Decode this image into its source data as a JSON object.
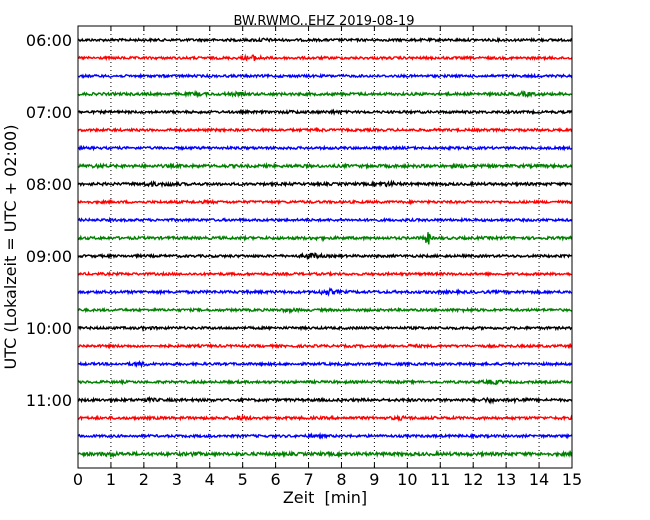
{
  "chart_data": {
    "type": "line",
    "title": "BW.RWMO..EHZ 2019-08-19",
    "xlabel": "Zeit  [min]",
    "ylabel": "UTC (Lokalzeit = UTC + 02:00)",
    "xlim": [
      0,
      15
    ],
    "x_ticks": [
      "0",
      "1",
      "2",
      "3",
      "4",
      "5",
      "6",
      "7",
      "8",
      "9",
      "10",
      "11",
      "12",
      "13",
      "14",
      "15"
    ],
    "y_ticks": [
      {
        "label": "06:00",
        "trace": 0
      },
      {
        "label": "07:00",
        "trace": 4
      },
      {
        "label": "08:00",
        "trace": 8
      },
      {
        "label": "09:00",
        "trace": 12
      },
      {
        "label": "10:00",
        "trace": 16
      },
      {
        "label": "11:00",
        "trace": 20
      }
    ],
    "grid": "vertical-dotted",
    "trace_interval_min": 15,
    "trace_colors": [
      "#000000",
      "#ff0000",
      "#0000ff",
      "#008000"
    ],
    "traces": [
      {
        "start": "06:00",
        "color": "#000000",
        "noise": 1.0,
        "events": [
          {
            "t": 5.6,
            "amp": 1.5
          }
        ]
      },
      {
        "start": "06:15",
        "color": "#ff0000",
        "noise": 1.0,
        "events": [
          {
            "t": 5.3,
            "amp": 2.2
          }
        ]
      },
      {
        "start": "06:30",
        "color": "#0000ff",
        "noise": 1.0,
        "events": []
      },
      {
        "start": "06:45",
        "color": "#008000",
        "noise": 1.1,
        "events": [
          {
            "t": 3.6,
            "amp": 1.4
          },
          {
            "t": 4.8,
            "amp": 1.4
          },
          {
            "t": 13.6,
            "amp": 1.8
          }
        ]
      },
      {
        "start": "07:00",
        "color": "#000000",
        "noise": 1.0,
        "events": [
          {
            "t": 6.5,
            "amp": 1.3
          },
          {
            "t": 7.8,
            "amp": 1.4
          }
        ]
      },
      {
        "start": "07:15",
        "color": "#ff0000",
        "noise": 1.0,
        "events": [
          {
            "t": 7.3,
            "amp": 1.3
          }
        ]
      },
      {
        "start": "07:30",
        "color": "#0000ff",
        "noise": 1.0,
        "events": []
      },
      {
        "start": "07:45",
        "color": "#008000",
        "noise": 1.2,
        "events": [
          {
            "t": 0.6,
            "amp": 1.3
          },
          {
            "t": 11.8,
            "amp": 1.3
          }
        ]
      },
      {
        "start": "08:00",
        "color": "#000000",
        "noise": 1.1,
        "events": [
          {
            "t": 2.2,
            "amp": 1.6
          },
          {
            "t": 2.8,
            "amp": 1.6
          },
          {
            "t": 9.4,
            "amp": 1.8
          }
        ]
      },
      {
        "start": "08:15",
        "color": "#ff0000",
        "noise": 1.0,
        "events": [
          {
            "t": 3.9,
            "amp": 1.2
          }
        ]
      },
      {
        "start": "08:30",
        "color": "#0000ff",
        "noise": 1.0,
        "events": []
      },
      {
        "start": "08:45",
        "color": "#008000",
        "noise": 1.1,
        "events": [
          {
            "t": 10.6,
            "amp": 8.5
          },
          {
            "t": 7.2,
            "amp": 1.3
          }
        ]
      },
      {
        "start": "09:00",
        "color": "#000000",
        "noise": 1.0,
        "events": [
          {
            "t": 7.1,
            "amp": 2.2
          }
        ]
      },
      {
        "start": "09:15",
        "color": "#ff0000",
        "noise": 1.0,
        "events": []
      },
      {
        "start": "09:30",
        "color": "#0000ff",
        "noise": 1.1,
        "events": [
          {
            "t": 7.6,
            "amp": 2.2
          }
        ]
      },
      {
        "start": "09:45",
        "color": "#008000",
        "noise": 1.0,
        "events": [
          {
            "t": 6.4,
            "amp": 1.5
          },
          {
            "t": 11.8,
            "amp": 1.3
          }
        ]
      },
      {
        "start": "10:00",
        "color": "#000000",
        "noise": 1.0,
        "events": [
          {
            "t": 2.1,
            "amp": 1.3
          }
        ]
      },
      {
        "start": "10:15",
        "color": "#ff0000",
        "noise": 1.0,
        "events": [
          {
            "t": 10.2,
            "amp": 1.3
          }
        ]
      },
      {
        "start": "10:30",
        "color": "#0000ff",
        "noise": 1.0,
        "events": [
          {
            "t": 1.9,
            "amp": 1.6
          }
        ]
      },
      {
        "start": "10:45",
        "color": "#008000",
        "noise": 1.0,
        "events": [
          {
            "t": 12.6,
            "amp": 1.8
          }
        ]
      },
      {
        "start": "11:00",
        "color": "#000000",
        "noise": 1.1,
        "events": [
          {
            "t": 12.5,
            "amp": 1.7
          },
          {
            "t": 13.4,
            "amp": 1.6
          },
          {
            "t": 2.2,
            "amp": 1.4
          }
        ]
      },
      {
        "start": "11:15",
        "color": "#ff0000",
        "noise": 1.1,
        "events": [
          {
            "t": 5.0,
            "amp": 1.5
          },
          {
            "t": 9.8,
            "amp": 1.5
          }
        ]
      },
      {
        "start": "11:30",
        "color": "#0000ff",
        "noise": 1.0,
        "events": [
          {
            "t": 7.2,
            "amp": 1.3
          }
        ]
      },
      {
        "start": "11:45",
        "color": "#008000",
        "noise": 1.3,
        "events": [
          {
            "t": 1.0,
            "amp": 1.5
          },
          {
            "t": 3.5,
            "amp": 1.3
          }
        ]
      }
    ]
  }
}
